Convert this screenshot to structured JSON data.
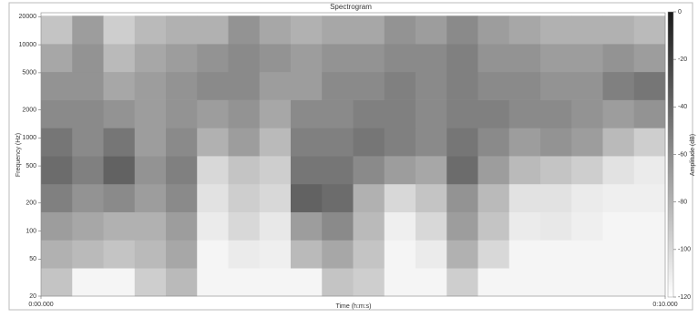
{
  "chart_data": {
    "type": "heatmap",
    "title": "Spectrogram",
    "x_label": "Time (h:m:s)",
    "y_label": "Frequency (Hz)",
    "colorbar_label": "Amplitude (dB)",
    "log_y": true,
    "xlim": [
      0,
      10
    ],
    "xticks": [
      {
        "value": 0,
        "label": "0:00.000"
      },
      {
        "value": 10,
        "label": "0:10.000"
      }
    ],
    "ylim": [
      20,
      22050
    ],
    "yticks": [
      20,
      50,
      100,
      200,
      500,
      1000,
      2000,
      5000,
      10000,
      20000
    ],
    "clim": [
      -120,
      0
    ],
    "cticks": [
      0,
      -20,
      -40,
      -60,
      -80,
      -100,
      -120
    ],
    "x": [
      0,
      0.5,
      1,
      1.5,
      2,
      2.5,
      3,
      3.5,
      4,
      4.5,
      5,
      5.5,
      6,
      6.5,
      7,
      7.5,
      8,
      8.5,
      9,
      9.5,
      10
    ],
    "y": [
      20,
      40,
      80,
      160,
      320,
      640,
      1280,
      2560,
      5120,
      10240,
      20480
    ],
    "z": [
      [
        -90,
        -115,
        -115,
        -95,
        -85,
        -115,
        -115,
        -115,
        -115,
        -90,
        -95,
        -115,
        -115,
        -95,
        -115,
        -115,
        -115,
        -115,
        -115,
        -115
      ],
      [
        -80,
        -85,
        -90,
        -85,
        -75,
        -115,
        -110,
        -112,
        -85,
        -75,
        -90,
        -115,
        -110,
        -80,
        -100,
        -115,
        -115,
        -115,
        -115,
        -115
      ],
      [
        -70,
        -75,
        -80,
        -80,
        -70,
        -110,
        -100,
        -108,
        -70,
        -60,
        -85,
        -112,
        -100,
        -70,
        -90,
        -110,
        -108,
        -112,
        -115,
        -115
      ],
      [
        -55,
        -65,
        -60,
        -70,
        -60,
        -105,
        -95,
        -100,
        -40,
        -45,
        -80,
        -100,
        -90,
        -65,
        -85,
        -105,
        -105,
        -110,
        -112,
        -112
      ],
      [
        -45,
        -55,
        -40,
        -65,
        -55,
        -100,
        -90,
        -95,
        -50,
        -50,
        -60,
        -70,
        -75,
        -45,
        -70,
        -85,
        -90,
        -95,
        -105,
        -110
      ],
      [
        -50,
        -60,
        -50,
        -70,
        -60,
        -80,
        -70,
        -85,
        -55,
        -55,
        -50,
        -55,
        -60,
        -50,
        -60,
        -70,
        -65,
        -70,
        -85,
        -95
      ],
      [
        -60,
        -60,
        -65,
        -70,
        -65,
        -70,
        -65,
        -75,
        -60,
        -60,
        -55,
        -55,
        -60,
        -55,
        -55,
        -60,
        -60,
        -65,
        -70,
        -65
      ],
      [
        -65,
        -65,
        -75,
        -70,
        -65,
        -60,
        -60,
        -70,
        -70,
        -60,
        -60,
        -55,
        -60,
        -55,
        -60,
        -60,
        -65,
        -65,
        -55,
        -50
      ],
      [
        -75,
        -65,
        -85,
        -75,
        -70,
        -65,
        -60,
        -65,
        -70,
        -65,
        -65,
        -60,
        -60,
        -55,
        -65,
        -65,
        -70,
        -70,
        -65,
        -70
      ],
      [
        -90,
        -70,
        -95,
        -85,
        -80,
        -80,
        -65,
        -75,
        -80,
        -75,
        -75,
        -65,
        -70,
        -60,
        -70,
        -75,
        -80,
        -80,
        -80,
        -85
      ]
    ]
  }
}
